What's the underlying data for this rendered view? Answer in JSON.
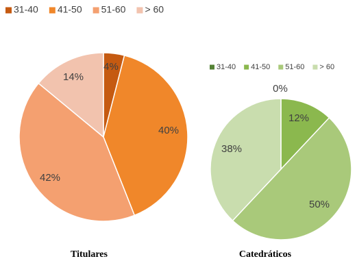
{
  "chart_data": [
    {
      "type": "pie",
      "title": "Titulares",
      "categories": [
        "31-40",
        "41-50",
        "51-60",
        "> 60"
      ],
      "values": [
        4,
        40,
        42,
        14
      ],
      "data_labels": [
        "4%",
        "40%",
        "42%",
        "14%"
      ],
      "colors": [
        "#C55A11",
        "#F0872A",
        "#F4A070",
        "#F2C3AE"
      ],
      "legend": "top-left"
    },
    {
      "type": "pie",
      "title": "Catedráticos",
      "categories": [
        "31-40",
        "41-50",
        "51-60",
        "> 60"
      ],
      "values": [
        0,
        12,
        50,
        38
      ],
      "data_labels": [
        "0%",
        "12%",
        "50%",
        "38%"
      ],
      "colors": [
        "#548235",
        "#8BB84E",
        "#A9C97A",
        "#C9DDAE"
      ],
      "legend": "top"
    }
  ]
}
